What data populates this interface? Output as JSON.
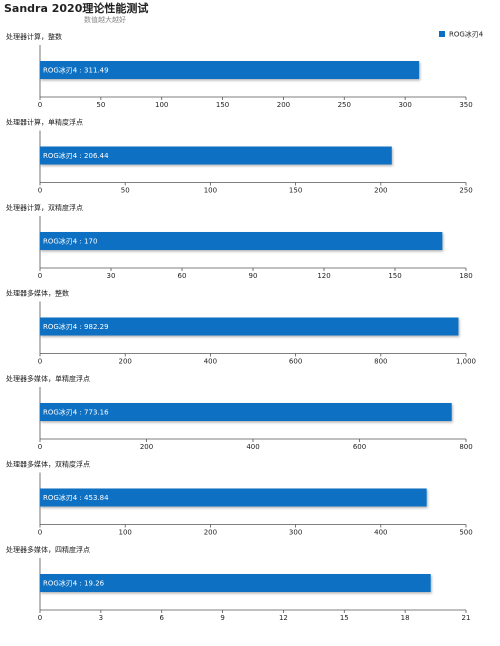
{
  "title": "Sandra 2020理论性能测试",
  "subtitle": "数值越大越好",
  "chart_data": [
    {
      "type": "bar",
      "title": "处理器计算，整数",
      "series": [
        {
          "name": "ROG冰刃4",
          "color": "#0a6fc2",
          "values": [
            311.49
          ],
          "value_labels": [
            "ROG冰刃4 : 311.49"
          ]
        }
      ],
      "xlim": [
        0,
        350
      ],
      "xticks": [
        0,
        50,
        100,
        150,
        200,
        250,
        300,
        350
      ]
    },
    {
      "type": "bar",
      "title": "处理器计算，单精度浮点",
      "series": [
        {
          "name": "ROG冰刃4",
          "color": "#0a6fc2",
          "values": [
            206.44
          ],
          "value_labels": [
            "ROG冰刃4 : 206.44"
          ]
        }
      ],
      "xlim": [
        0,
        250
      ],
      "xticks": [
        0,
        50,
        100,
        150,
        200,
        250
      ]
    },
    {
      "type": "bar",
      "title": "处理器计算，双精度浮点",
      "series": [
        {
          "name": "ROG冰刃4",
          "color": "#0a6fc2",
          "values": [
            170
          ],
          "value_labels": [
            "ROG冰刃4 : 170"
          ]
        }
      ],
      "xlim": [
        0,
        180
      ],
      "xticks": [
        0,
        30,
        60,
        90,
        120,
        150,
        180
      ]
    },
    {
      "type": "bar",
      "title": "处理器多媒体，整数",
      "series": [
        {
          "name": "ROG冰刃4",
          "color": "#0a6fc2",
          "values": [
            982.29
          ],
          "value_labels": [
            "ROG冰刃4 : 982.29"
          ]
        }
      ],
      "xlim": [
        0,
        1000
      ],
      "xticks": [
        0,
        200,
        400,
        600,
        800,
        {
          "value": 1000,
          "label": "1,000"
        }
      ]
    },
    {
      "type": "bar",
      "title": "处理器多媒体，单精度浮点",
      "series": [
        {
          "name": "ROG冰刃4",
          "color": "#0a6fc2",
          "values": [
            773.16
          ],
          "value_labels": [
            "ROG冰刃4 : 773.16"
          ]
        }
      ],
      "xlim": [
        0,
        800
      ],
      "xticks": [
        0,
        200,
        400,
        600,
        800
      ]
    },
    {
      "type": "bar",
      "title": "处理器多媒体，双精度浮点",
      "series": [
        {
          "name": "ROG冰刃4",
          "color": "#0a6fc2",
          "values": [
            453.84
          ],
          "value_labels": [
            "ROG冰刃4 : 453.84"
          ]
        }
      ],
      "xlim": [
        0,
        500
      ],
      "xticks": [
        0,
        100,
        200,
        300,
        400,
        500
      ]
    },
    {
      "type": "bar",
      "title": "处理器多媒体，四精度浮点",
      "series": [
        {
          "name": "ROG冰刃4",
          "color": "#0a6fc2",
          "values": [
            19.26
          ],
          "value_labels": [
            "ROG冰刃4 : 19.26"
          ]
        }
      ],
      "xlim": [
        0,
        21
      ],
      "xticks": [
        0,
        3,
        6,
        9,
        12,
        15,
        18,
        21
      ]
    }
  ]
}
